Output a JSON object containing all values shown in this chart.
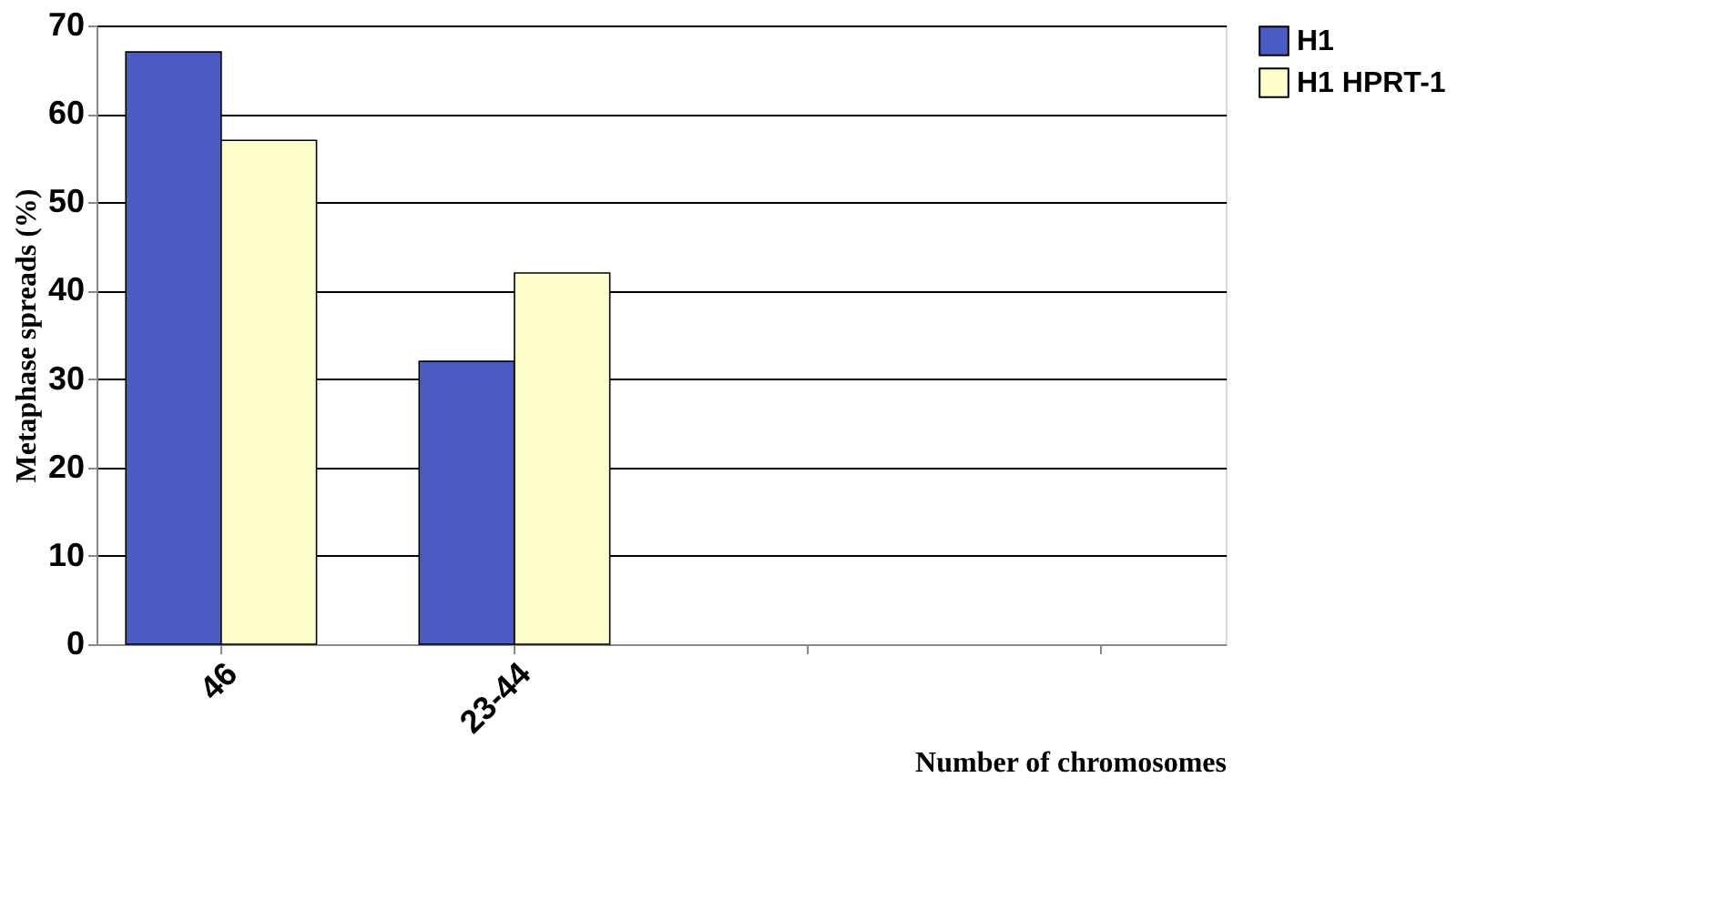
{
  "chart_data": {
    "type": "bar",
    "xlabel": "Number of chromosomes",
    "ylabel": "Metaphase spreads (%)",
    "categories": [
      "46",
      "23-44",
      null,
      null
    ],
    "series": [
      {
        "name": "H1",
        "color": "#4a5cc4",
        "values": [
          67,
          32,
          null,
          null
        ]
      },
      {
        "name": "H1 HPRT-1",
        "color": "#ffffcc",
        "values": [
          57,
          42,
          null,
          null
        ]
      }
    ],
    "ylim": [
      0,
      70
    ],
    "yticks": [
      0,
      10,
      20,
      30,
      40,
      50,
      60,
      70
    ],
    "grid": "y",
    "legend": "right"
  }
}
